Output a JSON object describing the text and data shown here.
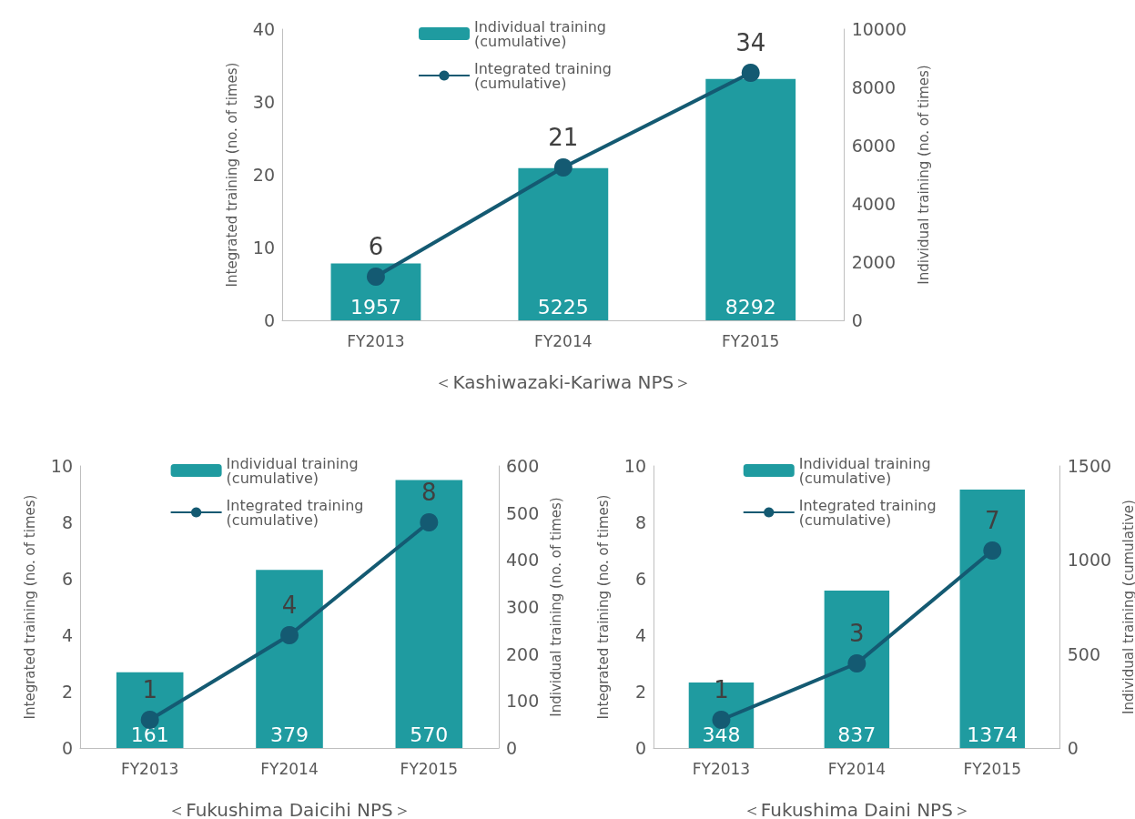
{
  "chart_data": [
    {
      "type": "bar",
      "xlabel": "＜Kashiwazaki-Kariwa NPS＞",
      "ylabel": "Integrated training (no. of times)",
      "y2label": "Individual training (no. of times)",
      "categories": [
        "FY2013",
        "FY2014",
        "FY2015"
      ],
      "ylim": [
        0,
        40
      ],
      "yticks": [
        0,
        10,
        20,
        30,
        40
      ],
      "y2lim": [
        0,
        10000
      ],
      "y2ticks": [
        0,
        2000,
        4000,
        6000,
        8000,
        10000
      ],
      "legend": "top",
      "data_labels": true,
      "grid": false,
      "series": [
        {
          "name": "Individual training (cumulative)",
          "axis": "y2",
          "color": "#1f9ba0",
          "values": [
            1957,
            5225,
            8292
          ]
        },
        {
          "name": "Integrated training (cumulative)",
          "type": "line",
          "axis": "y",
          "color": "#145a72",
          "marker": "circle",
          "values": [
            6,
            21,
            34
          ]
        }
      ]
    },
    {
      "type": "bar",
      "xlabel": "＜Fukushima Daicihi NPS＞",
      "ylabel": "Integrated training (no. of times)",
      "y2label": "Individual training (no. of times)",
      "categories": [
        "FY2013",
        "FY2014",
        "FY2015"
      ],
      "ylim": [
        0,
        10
      ],
      "yticks": [
        0,
        2,
        4,
        6,
        8,
        10
      ],
      "y2lim": [
        0,
        600
      ],
      "y2ticks": [
        0,
        100,
        200,
        300,
        400,
        500,
        600
      ],
      "legend": "top",
      "data_labels": true,
      "grid": false,
      "series": [
        {
          "name": "Individual training (cumulative)",
          "axis": "y2",
          "color": "#1f9ba0",
          "values": [
            161,
            379,
            570
          ]
        },
        {
          "name": "Integrated training (cumulative)",
          "type": "line",
          "axis": "y",
          "color": "#145a72",
          "marker": "circle",
          "values": [
            1,
            4,
            8
          ]
        }
      ]
    },
    {
      "type": "bar",
      "xlabel": "＜Fukushima Daini NPS＞",
      "ylabel": "Integrated training (no. of times)",
      "y2label": "Individual training (cumulative)",
      "categories": [
        "FY2013",
        "FY2014",
        "FY2015"
      ],
      "ylim": [
        0,
        10
      ],
      "yticks": [
        0,
        2,
        4,
        6,
        8,
        10
      ],
      "y2lim": [
        0,
        1500
      ],
      "y2ticks": [
        0,
        500,
        1000,
        1500
      ],
      "legend": "top",
      "data_labels": true,
      "grid": false,
      "series": [
        {
          "name": "Individual training (cumulative)",
          "axis": "y2",
          "color": "#1f9ba0",
          "values": [
            348,
            837,
            1374
          ]
        },
        {
          "name": "Integrated training (cumulative)",
          "type": "line",
          "axis": "y",
          "color": "#145a72",
          "marker": "circle",
          "values": [
            1,
            3,
            7
          ]
        }
      ]
    }
  ]
}
